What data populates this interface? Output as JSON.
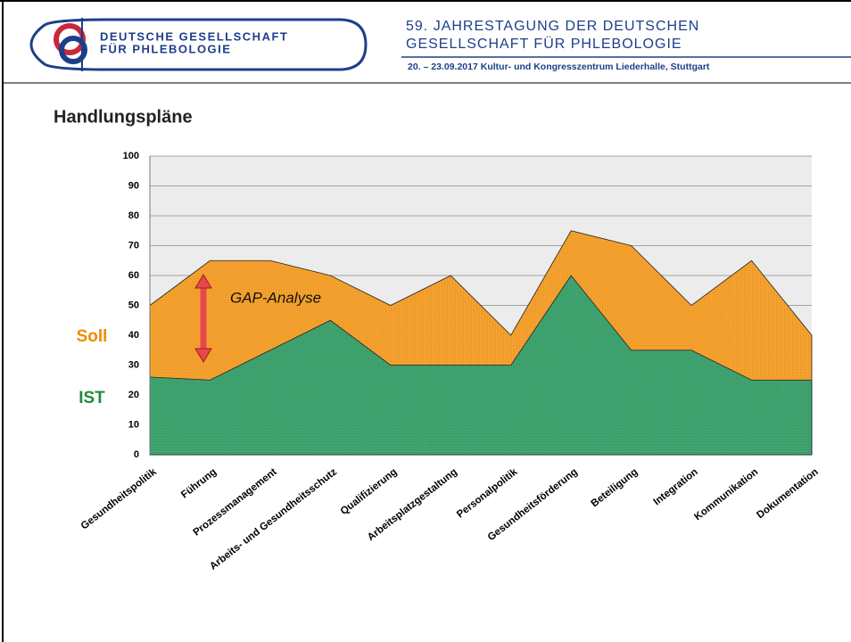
{
  "header": {
    "society_line1": "Deutsche Gesellschaft",
    "society_line2": "für Phlebologie",
    "congress_line1": "59. JAHRESTAGUNG DER DEUTSCHEN",
    "congress_line2": "GESELLSCHAFT FÜR PHLEBOLOGIE",
    "date_venue": "20. – 23.09.2017 Kultur- und Kongresszentrum Liederhalle, Stuttgart"
  },
  "chart_data": {
    "type": "area",
    "title": "Handlungspläne",
    "categories": [
      "Gesundheitspolitik",
      "Führung",
      "Prozessmanagement",
      "Arbeits- und Gesundheitsschutz",
      "Qualifizierung",
      "Arbeitsplatzgestaltung",
      "Personalpolitik",
      "Gesundheitsförderung",
      "Beteiligung",
      "Integration",
      "Kommunikation",
      "Dokumentation"
    ],
    "series": [
      {
        "name": "Soll",
        "color": "#f5a12e",
        "values": [
          50,
          65,
          65,
          60,
          50,
          60,
          40,
          75,
          70,
          50,
          65,
          40
        ]
      },
      {
        "name": "IST",
        "color": "#3fa36f",
        "values": [
          26,
          25,
          35,
          45,
          30,
          30,
          30,
          60,
          35,
          35,
          25,
          25
        ]
      }
    ],
    "annotation": "GAP-Analyse",
    "ylim": [
      0,
      100
    ],
    "yticks": [
      0,
      10,
      20,
      30,
      40,
      50,
      60,
      70,
      80,
      90,
      100
    ],
    "grid": true
  }
}
